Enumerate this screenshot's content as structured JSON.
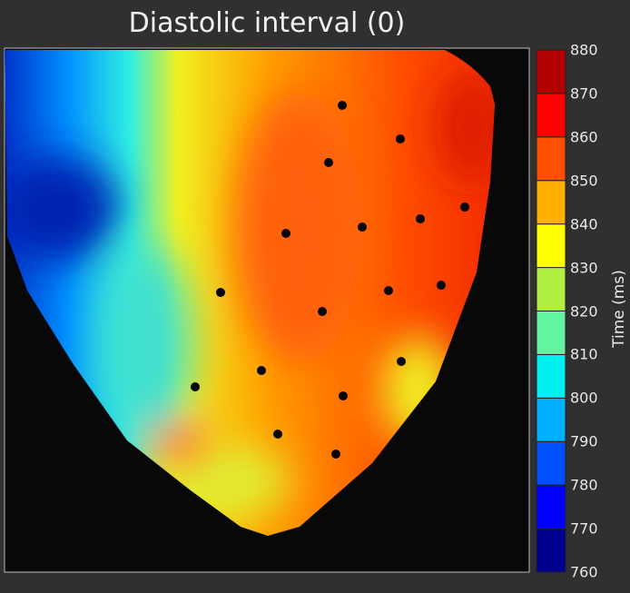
{
  "chart_data": {
    "type": "heatmap",
    "title": "Diastolic interval (0)",
    "colorbar": {
      "label": "Time (ms)",
      "range": [
        760,
        880
      ],
      "ticks": [
        880,
        870,
        860,
        850,
        840,
        830,
        820,
        810,
        800,
        790,
        780,
        770,
        760
      ],
      "colormap": "jet",
      "levels": 12
    },
    "description_values": {
      "min_region": "left (blue, ~770-790 ms)",
      "max_region": "upper right (~860-870 ms)"
    }
  }
}
